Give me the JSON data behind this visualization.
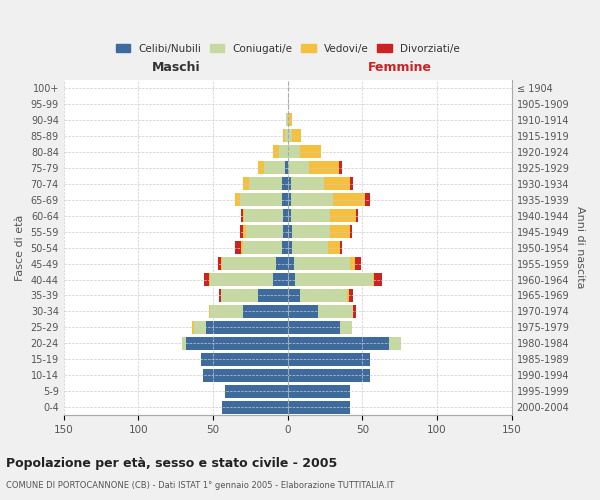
{
  "age_groups": [
    "0-4",
    "5-9",
    "10-14",
    "15-19",
    "20-24",
    "25-29",
    "30-34",
    "35-39",
    "40-44",
    "45-49",
    "50-54",
    "55-59",
    "60-64",
    "65-69",
    "70-74",
    "75-79",
    "80-84",
    "85-89",
    "90-94",
    "95-99",
    "100+"
  ],
  "birth_years": [
    "2000-2004",
    "1995-1999",
    "1990-1994",
    "1985-1989",
    "1980-1984",
    "1975-1979",
    "1970-1974",
    "1965-1969",
    "1960-1964",
    "1955-1959",
    "1950-1954",
    "1945-1949",
    "1940-1944",
    "1935-1939",
    "1930-1934",
    "1925-1929",
    "1920-1924",
    "1915-1919",
    "1910-1914",
    "1905-1909",
    "≤ 1904"
  ],
  "maschi": {
    "celibi": [
      44,
      42,
      57,
      58,
      68,
      55,
      30,
      20,
      10,
      8,
      4,
      3,
      3,
      4,
      4,
      2,
      0,
      0,
      0,
      0,
      0
    ],
    "coniugati": [
      0,
      0,
      0,
      0,
      3,
      8,
      22,
      25,
      42,
      36,
      26,
      25,
      26,
      28,
      22,
      14,
      6,
      2,
      1,
      0,
      0
    ],
    "vedovi": [
      0,
      0,
      0,
      0,
      0,
      1,
      1,
      0,
      1,
      1,
      1,
      2,
      1,
      3,
      4,
      4,
      4,
      1,
      0,
      0,
      0
    ],
    "divorziati": [
      0,
      0,
      0,
      0,
      0,
      0,
      0,
      1,
      3,
      2,
      4,
      2,
      1,
      0,
      0,
      0,
      0,
      0,
      0,
      0,
      0
    ]
  },
  "femmine": {
    "nubili": [
      42,
      42,
      55,
      55,
      68,
      35,
      20,
      8,
      5,
      4,
      3,
      3,
      2,
      2,
      2,
      0,
      0,
      0,
      0,
      0,
      0
    ],
    "coniugate": [
      0,
      0,
      0,
      0,
      8,
      8,
      24,
      32,
      52,
      38,
      24,
      25,
      26,
      28,
      22,
      14,
      8,
      3,
      1,
      1,
      0
    ],
    "vedove": [
      0,
      0,
      0,
      0,
      0,
      0,
      0,
      1,
      1,
      3,
      8,
      14,
      18,
      22,
      18,
      20,
      14,
      6,
      2,
      0,
      0
    ],
    "divorziate": [
      0,
      0,
      0,
      0,
      0,
      0,
      2,
      3,
      5,
      4,
      1,
      1,
      1,
      3,
      2,
      2,
      0,
      0,
      0,
      0,
      0
    ]
  },
  "colors": {
    "celibi": "#3d6b9e",
    "coniugati": "#c5d9a0",
    "vedovi": "#f5c040",
    "divorziati": "#cc2222"
  },
  "xlim": 150,
  "title": "Popolazione per età, sesso e stato civile - 2005",
  "subtitle": "COMUNE DI PORTOCANNONE (CB) - Dati ISTAT 1° gennaio 2005 - Elaborazione TUTTITALIA.IT",
  "xlabel_left": "Maschi",
  "xlabel_right": "Femmine",
  "ylabel_left": "Fasce di età",
  "ylabel_right": "Anni di nascita",
  "bg_color": "#f0f0f0",
  "plot_bg": "#ffffff",
  "maschi_color": "#333333",
  "femmine_color": "#cc2222"
}
